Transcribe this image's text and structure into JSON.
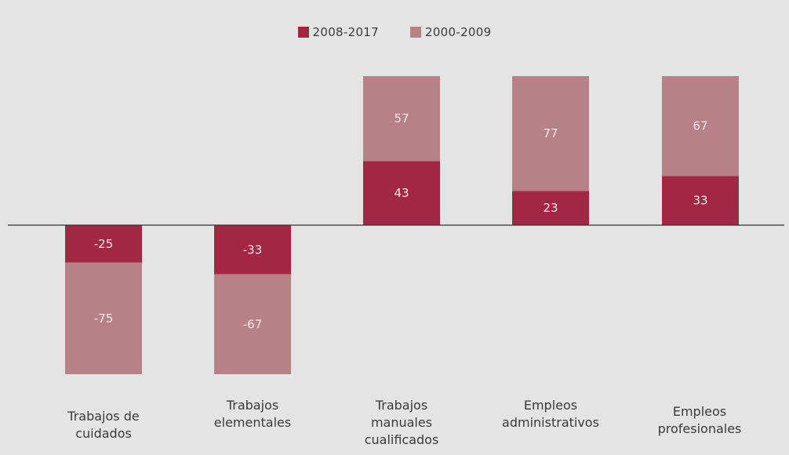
{
  "legend": [
    {
      "label": "2008-2017",
      "color": "#a02843"
    },
    {
      "label": "2000-2009",
      "color": "#b68187"
    }
  ],
  "chart_data": {
    "type": "bar",
    "stacked": true,
    "title": "",
    "xlabel": "",
    "ylabel": "",
    "categories": [
      "Trabajos de\ncuidados",
      "Trabajos\nelementales",
      "Trabajos\nmanuales\ncualificados",
      "Empleos\nadministrativos",
      "Empleos\nprofesionales"
    ],
    "series": [
      {
        "name": "2008-2017",
        "color": "#a02843",
        "values": [
          -25,
          -33,
          43,
          23,
          33
        ],
        "labels": [
          "-25",
          "-33",
          "43",
          "23",
          "33"
        ]
      },
      {
        "name": "2000-2009",
        "color": "#b68187",
        "values": [
          -75,
          -67,
          57,
          77,
          67
        ],
        "labels": [
          "-75",
          "-67",
          "57",
          "77",
          "67"
        ]
      }
    ],
    "ylim": [
      -100,
      100
    ],
    "grid": false,
    "legend_position": "top-center"
  }
}
